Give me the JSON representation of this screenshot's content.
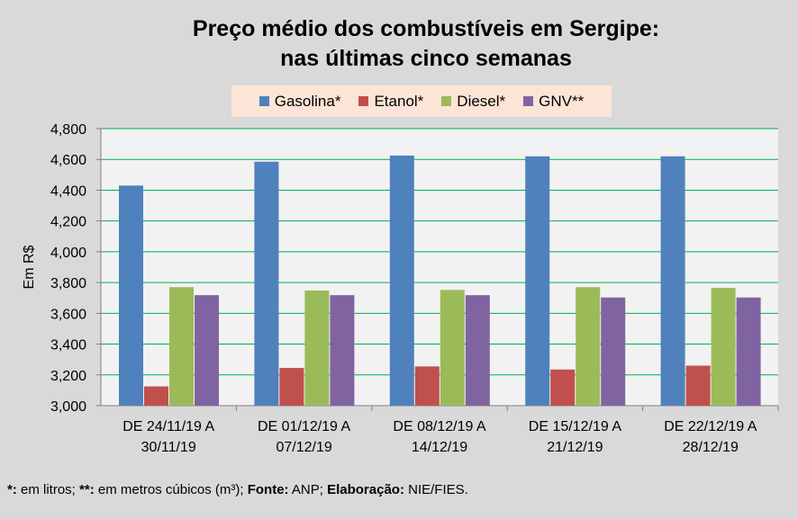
{
  "chart_data": {
    "type": "bar",
    "title": [
      "Preço médio dos combustíveis em Sergipe:",
      "nas últimas cinco semanas"
    ],
    "ylabel": "Em R$",
    "xlabel": "",
    "ylim": [
      3.0,
      4.8
    ],
    "yticks": [
      3.0,
      3.2,
      3.4,
      3.6,
      3.8,
      4.0,
      4.2,
      4.4,
      4.6,
      4.8
    ],
    "ytick_labels": [
      "3,000",
      "3,200",
      "3,400",
      "3,600",
      "3,800",
      "4,000",
      "4,200",
      "4,400",
      "4,600",
      "4,800"
    ],
    "categories": [
      [
        "DE 24/11/19 A",
        "30/11/19"
      ],
      [
        "DE 01/12/19 A",
        "07/12/19"
      ],
      [
        "DE 08/12/19 A",
        "14/12/19"
      ],
      [
        "DE 15/12/19 A",
        "21/12/19"
      ],
      [
        "DE 22/12/19 A",
        "28/12/19"
      ]
    ],
    "series": [
      {
        "name": "Gasolina*",
        "color": "#4f81bd",
        "values": [
          4.43,
          4.585,
          4.625,
          4.62,
          4.62
        ]
      },
      {
        "name": "Etanol*",
        "color": "#c0504d",
        "values": [
          3.125,
          3.245,
          3.255,
          3.235,
          3.26
        ]
      },
      {
        "name": "Diesel*",
        "color": "#9bbb59",
        "values": [
          3.77,
          3.748,
          3.752,
          3.77,
          3.765
        ]
      },
      {
        "name": "GNV**",
        "color": "#8064a2",
        "values": [
          3.718,
          3.718,
          3.718,
          3.703,
          3.703
        ]
      }
    ],
    "grid": true,
    "legend_position": "top"
  },
  "footnote": {
    "p1_bold": "*:",
    "p1": " em litros; ",
    "p2_bold": "**:",
    "p2": " em metros cúbicos (m³); ",
    "p3_bold": "Fonte:",
    "p3": " ANP; ",
    "p4_bold": "Elaboração:",
    "p4": " NIE/FIES."
  }
}
